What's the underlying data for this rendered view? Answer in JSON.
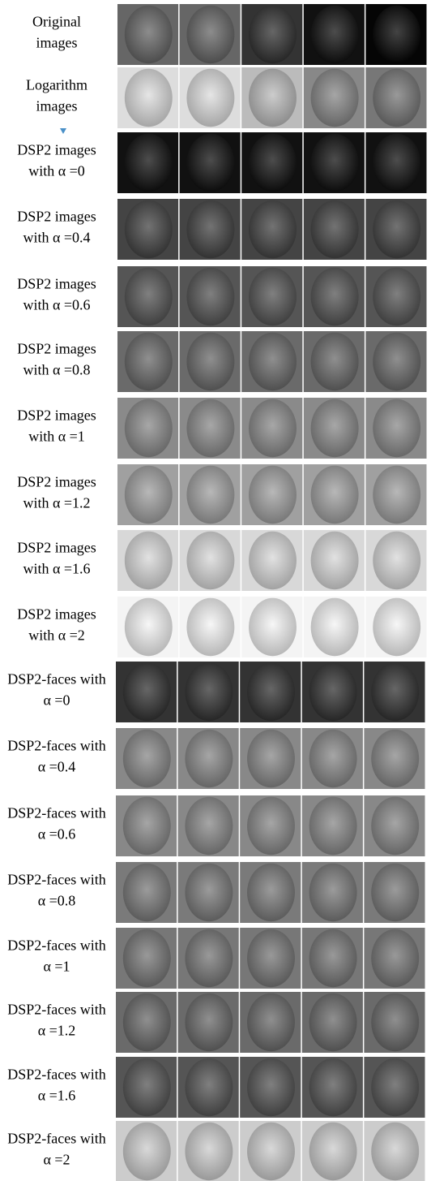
{
  "figure": {
    "rows": [
      {
        "label": [
          "Original",
          "images"
        ]
      },
      {
        "label": [
          "Logarithm",
          "images"
        ]
      },
      {
        "label": [
          "DSP2 images",
          "with α =0"
        ]
      },
      {
        "label": [
          "DSP2 images",
          "with α =0.4"
        ]
      },
      {
        "label": [
          "DSP2 images",
          "with α =0.6"
        ]
      },
      {
        "label": [
          "DSP2 images",
          "with α =0.8"
        ]
      },
      {
        "label": [
          "DSP2 images",
          "with α =1"
        ]
      },
      {
        "label": [
          "DSP2 images",
          "with α =1.2"
        ]
      },
      {
        "label": [
          "DSP2 images",
          "with α =1.6"
        ]
      },
      {
        "label": [
          "DSP2 images",
          "with α =2"
        ]
      },
      {
        "label": [
          "DSP2-faces with",
          "α =0"
        ]
      },
      {
        "label": [
          "DSP2-faces with",
          "α =0.4"
        ]
      },
      {
        "label": [
          "DSP2-faces with",
          "α =0.6"
        ]
      },
      {
        "label": [
          "DSP2-faces with",
          "α =0.8"
        ]
      },
      {
        "label": [
          "DSP2-faces with",
          "α =1"
        ]
      },
      {
        "label": [
          "DSP2-faces with",
          "α =1.2"
        ]
      },
      {
        "label": [
          "DSP2-faces with",
          "α =1.6"
        ]
      },
      {
        "label": [
          "DSP2-faces with",
          "α =2"
        ]
      }
    ]
  }
}
